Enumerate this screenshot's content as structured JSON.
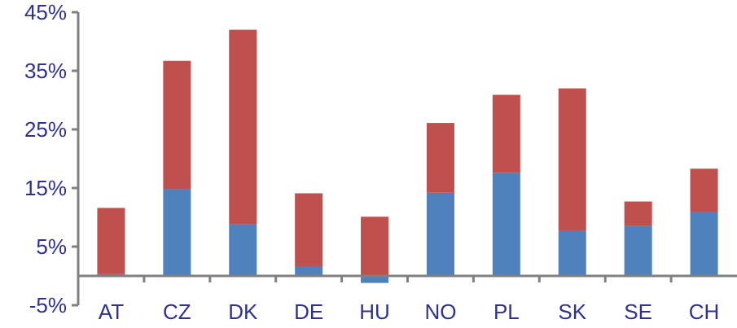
{
  "chart_data": {
    "type": "bar",
    "stacked": true,
    "categories": [
      "AT",
      "CZ",
      "DK",
      "DE",
      "HU",
      "NO",
      "PL",
      "SK",
      "SE",
      "CH"
    ],
    "series": [
      {
        "color": "#4F81BD",
        "values": [
          0.3,
          14.8,
          8.8,
          1.6,
          -1.2,
          14.2,
          17.6,
          7.7,
          8.5,
          10.9
        ]
      },
      {
        "color": "#C0504D",
        "values": [
          11.3,
          21.9,
          33.2,
          12.5,
          10.1,
          11.9,
          13.3,
          24.3,
          4.2,
          7.4
        ]
      }
    ],
    "y_ticks": [
      -5,
      5,
      15,
      25,
      35,
      45
    ],
    "y_tick_labels": [
      "-5%",
      "5%",
      "15%",
      "25%",
      "35%",
      "45%"
    ],
    "ylim": [
      -5,
      45
    ],
    "title": "",
    "xlabel": "",
    "ylabel": "",
    "grid": false,
    "legend": "none",
    "axis_color": "#808080",
    "label_color": "#2E3192"
  }
}
